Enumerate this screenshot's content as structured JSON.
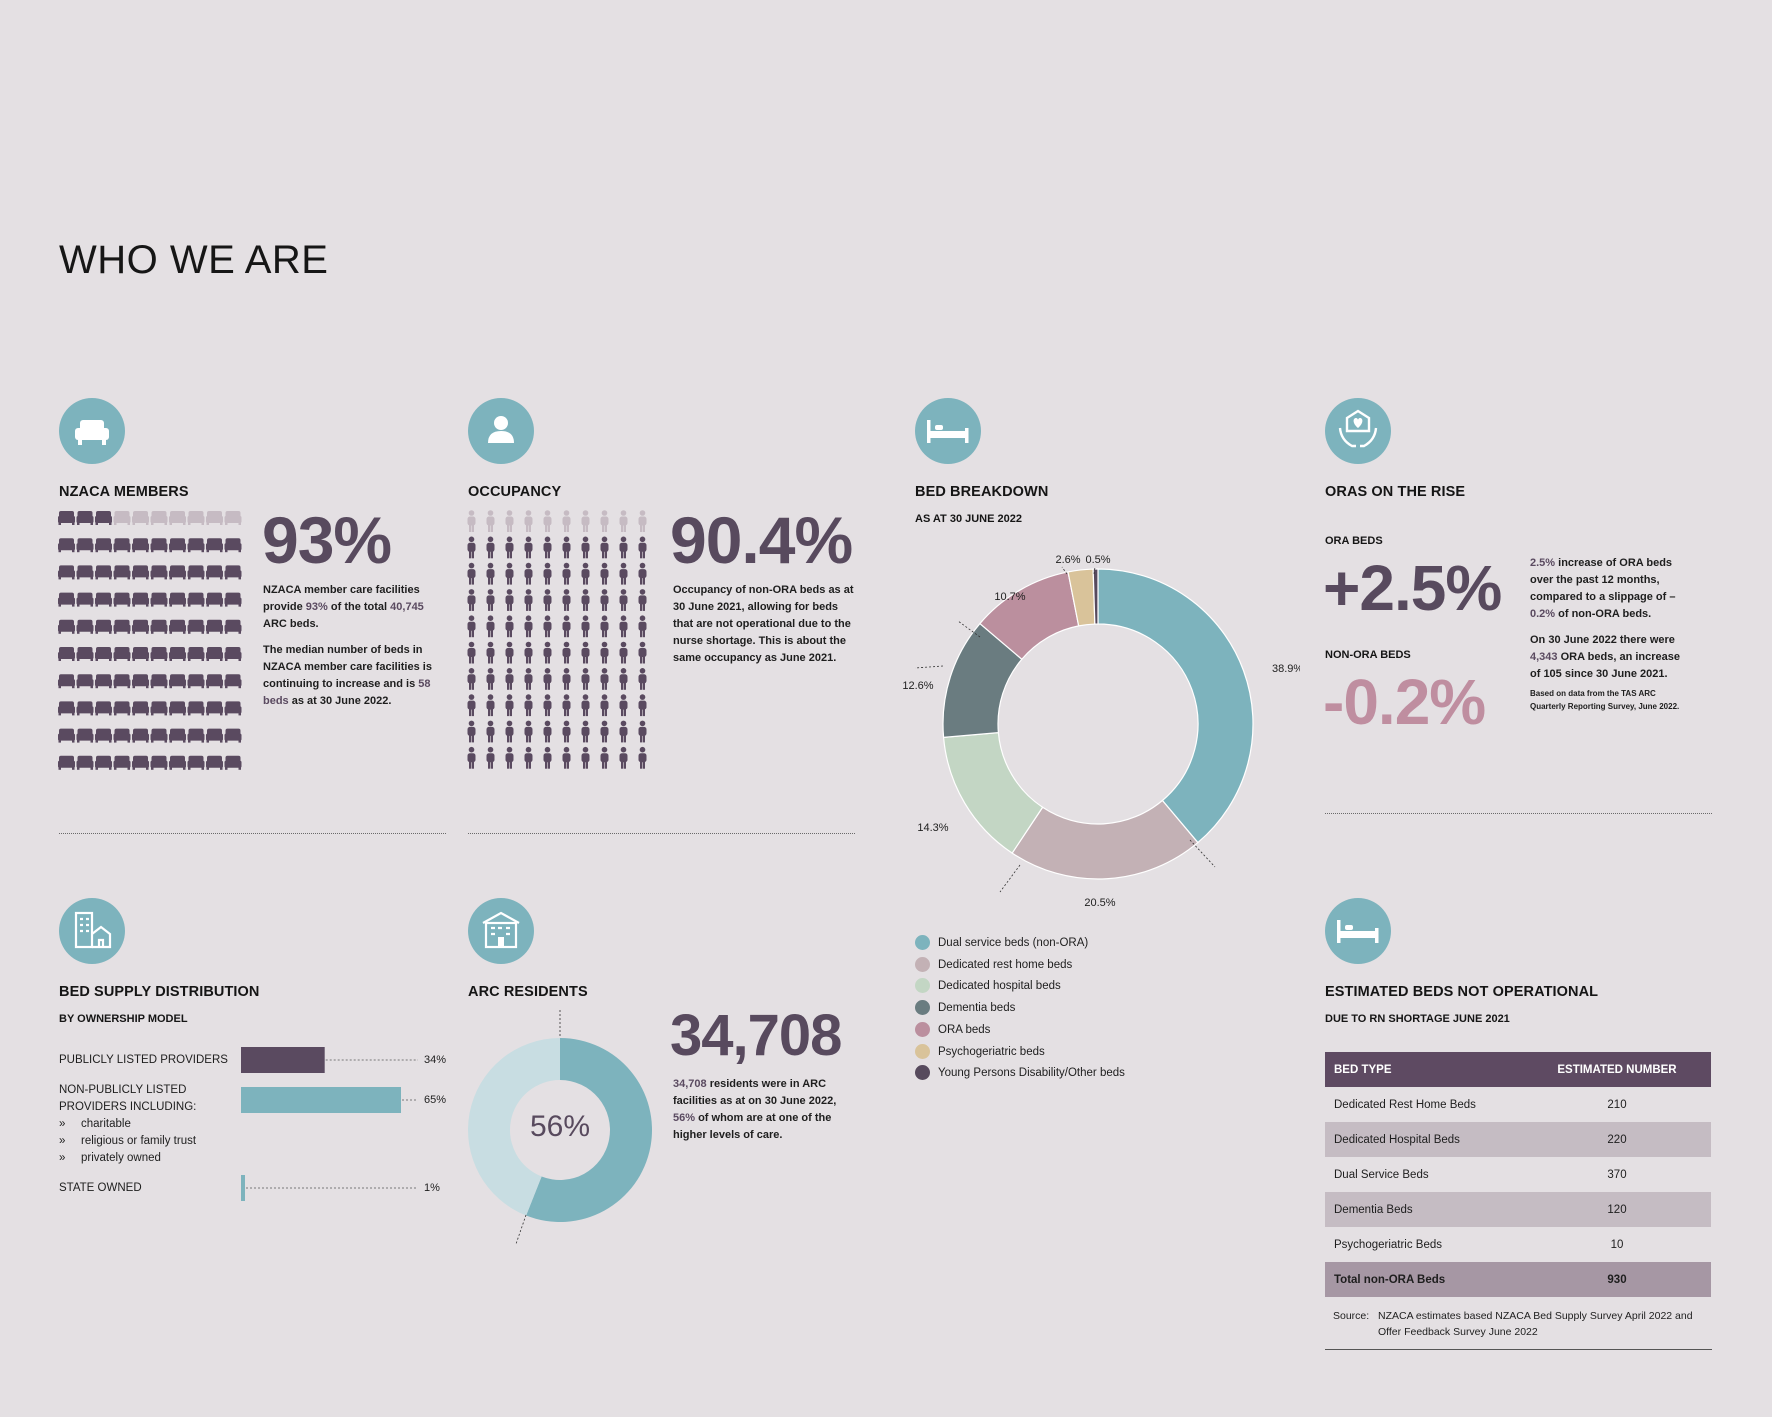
{
  "page_title": "WHO WE ARE",
  "colors": {
    "accent_teal": "#7db3bd",
    "purple_dark": "#5a4a60",
    "purple_light": "#c6bbc3",
    "pink": "#bf8ea0"
  },
  "members": {
    "icon": "armchair-icon",
    "title": "NZACA MEMBERS",
    "percent": "93%",
    "share_value": 93,
    "total_icons": 100,
    "text1_a": "NZACA member care facilities provide ",
    "text1_b": "93%",
    "text1_c": " of the total ",
    "text1_d": "40,745",
    "text1_e": " ARC beds.",
    "text2_a": "The median number of beds in NZACA member care facilities is continuing to increase and is ",
    "text2_b": "58 beds",
    "text2_c": " as at 30 June 2022."
  },
  "occupancy": {
    "icon": "person-icon",
    "title": "OCCUPANCY",
    "percent": "90.4%",
    "occupancy_value": 90.4,
    "total_icons": 100,
    "text": "Occupancy of non-ORA beds as at 30 June 2021, allowing for beds that are not operational due to the nurse shortage. This is about the same occupancy as June 2021."
  },
  "bed_breakdown": {
    "icon": "bed-icon",
    "title": "BED BREAKDOWN",
    "subtitle": "AS AT 30 JUNE 2022"
  },
  "oras": {
    "icon": "hands-heart-icon",
    "title": "ORAS ON THE RISE",
    "ora_label": "ORA BEDS",
    "ora_value": "+2.5%",
    "non_ora_label": "NON-ORA BEDS",
    "non_ora_value": "-0.2%",
    "text1_a": "2.5%",
    "text1_b": " increase of ORA beds over the past 12 months, compared to a slippage of –",
    "text1_c": "0.2%",
    "text1_d": " of non-ORA beds.",
    "text2_a": "On 30 June 2022 there were ",
    "text2_b": "4,343",
    "text2_c": " ORA beds, an increase of 105 since 30 June 2021.",
    "note": "Based on data from the TAS ARC Quarterly Reporting Survey, June 2022."
  },
  "supply": {
    "icon": "building-icon",
    "title": "BED SUPPLY DISTRIBUTION",
    "subtitle": "BY OWNERSHIP MODEL",
    "rows": [
      {
        "label": "PUBLICLY LISTED PROVIDERS",
        "value_label": "34%",
        "value": 34,
        "color": "#5a4a60"
      },
      {
        "label": "NON-PUBLICLY LISTED PROVIDERS INCLUDING:",
        "value_label": "65%",
        "value": 65,
        "color": "#7db3bd",
        "subitems": [
          "charitable",
          "religious or family trust",
          "privately owned"
        ]
      },
      {
        "label": "STATE OWNED",
        "value_label": "1%",
        "value": 1,
        "color": "#7db3bd"
      }
    ],
    "bullet": "»"
  },
  "residents": {
    "icon": "care-home-icon",
    "title": "ARC RESIDENTS",
    "count": "34,708",
    "donut_label": "56%",
    "donut_value": 56,
    "text_a": "34,708",
    "text_b": " residents were in ARC facilities as at on 30 June 2022, ",
    "text_c": "56%",
    "text_d": " of whom are at one of the higher levels of care."
  },
  "not_operational": {
    "icon": "bed-icon",
    "title": "ESTIMATED BEDS NOT OPERATIONAL",
    "subtitle": "DUE TO RN SHORTAGE JUNE 2021",
    "headers": [
      "BED TYPE",
      "ESTIMATED NUMBER"
    ],
    "rows": [
      [
        "Dedicated Rest Home Beds",
        "210"
      ],
      [
        "Dedicated Hospital Beds",
        "220"
      ],
      [
        "Dual Service Beds",
        "370"
      ],
      [
        "Dementia Beds",
        "120"
      ],
      [
        "Psychogeriatric Beds",
        "10"
      ]
    ],
    "total": [
      "Total non-ORA Beds",
      "930"
    ],
    "source_label": "Source:",
    "source_text": "NZACA estimates based NZACA Bed Supply Survey April 2022 and Offer Feedback Survey June 2022"
  },
  "chart_data": [
    {
      "type": "pie",
      "title": "BED BREAKDOWN",
      "subtitle": "AS AT 30 JUNE 2022",
      "legend_position": "bottom",
      "slices": [
        {
          "name": "Dual service beds (non-ORA)",
          "value": 38.9,
          "label": "38.9%",
          "color": "#7db3bd"
        },
        {
          "name": "Dedicated rest home beds",
          "value": 20.5,
          "label": "20.5%",
          "color": "#c3b1b5"
        },
        {
          "name": "Dedicated hospital beds",
          "value": 14.3,
          "label": "14.3%",
          "color": "#c3d6c4"
        },
        {
          "name": "Dementia beds",
          "value": 12.6,
          "label": "12.6%",
          "color": "#6a7c80"
        },
        {
          "name": "ORA beds",
          "value": 10.7,
          "label": "10.7%",
          "color": "#bb8f9e"
        },
        {
          "name": "Psychogeriatric beds",
          "value": 2.6,
          "label": "2.6%",
          "color": "#d9c39a"
        },
        {
          "name": "Young Persons Disability/Other beds",
          "value": 0.5,
          "label": "0.5%",
          "color": "#574a5d"
        }
      ]
    },
    {
      "type": "bar",
      "title": "BED SUPPLY DISTRIBUTION",
      "categories": [
        "PUBLICLY LISTED PROVIDERS",
        "NON-PUBLICLY LISTED PROVIDERS INCLUDING:",
        "STATE OWNED"
      ],
      "values": [
        34,
        65,
        1
      ],
      "orientation": "horizontal"
    },
    {
      "type": "pie",
      "title": "ARC RESIDENTS",
      "slices": [
        {
          "value": 56,
          "color": "#7db3bd"
        },
        {
          "value": 44,
          "color": "#c8dde2"
        }
      ]
    }
  ]
}
